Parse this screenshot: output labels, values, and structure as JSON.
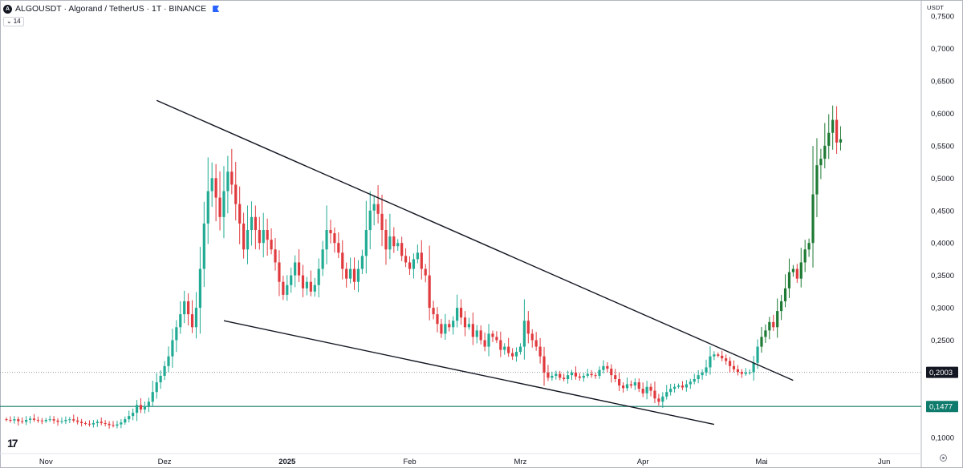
{
  "header": {
    "symbol_line": "ALGOUSDT · Algorand / TetherUS · 1T · BINANCE",
    "symbol_logo": "A",
    "indicator_chip": "14",
    "currency": "USDT"
  },
  "icons": {
    "symbol": "algorand-logo-icon",
    "flag": "flag-icon",
    "collapse": "chevron-down-icon",
    "settings": "gear-icon",
    "brand": "tradingview-logo-icon"
  },
  "brand_text": "17",
  "colors": {
    "up": "#22ab94",
    "up_dark": "#1e7a34",
    "down": "#e03a3e",
    "trendline": "#131722",
    "support": "#0f7b6c",
    "current_price": "#131722",
    "grid_dotted": "#9598a1"
  },
  "chart_data": {
    "type": "candlestick",
    "timeframe": "1T",
    "x_labels": [
      "Nov",
      "Dez",
      "2025",
      "Feb",
      "Mrz",
      "Apr",
      "Mai",
      "Jun"
    ],
    "y_ticks": [
      "0,7500",
      "0,7000",
      "0,6500",
      "0,6000",
      "0,5500",
      "0,5000",
      "0,4500",
      "0,4000",
      "0,3500",
      "0,3000",
      "0,2500",
      "0,2000",
      "0,1500",
      "0,1000"
    ],
    "ylim": [
      0.075,
      0.77
    ],
    "y_tick_values": [
      0.75,
      0.7,
      0.65,
      0.6,
      0.55,
      0.5,
      0.45,
      0.4,
      0.35,
      0.3,
      0.25,
      0.2,
      0.15,
      0.1
    ],
    "date_range": [
      "2024-10-22",
      "2025-05-28"
    ],
    "month_ticks": [
      {
        "label": "Nov",
        "date": "2024-11-01"
      },
      {
        "label": "Dez",
        "date": "2024-12-01"
      },
      {
        "label": "2025",
        "date": "2025-01-01"
      },
      {
        "label": "Feb",
        "date": "2025-02-01"
      },
      {
        "label": "Mrz",
        "date": "2025-03-01"
      },
      {
        "label": "Apr",
        "date": "2025-04-01"
      },
      {
        "label": "Mai",
        "date": "2025-05-01"
      },
      {
        "label": "Jun",
        "date": "2025-06-01"
      }
    ],
    "current_price": {
      "value": 0.2003,
      "label": "0,2003"
    },
    "support_line": {
      "value": 0.1477,
      "label": "0,1477"
    },
    "trendlines": [
      {
        "name": "upper",
        "from": {
          "date": "2024-11-29",
          "price": 0.62
        },
        "to": {
          "date": "2025-05-09",
          "price": 0.188
        }
      },
      {
        "name": "lower",
        "from": {
          "date": "2024-12-16",
          "price": 0.28
        },
        "to": {
          "date": "2025-04-19",
          "price": 0.12
        }
      }
    ],
    "candles_daily": {
      "start_date": "2024-10-22",
      "open_first": 0.128,
      "close": [
        0.127,
        0.126,
        0.128,
        0.125,
        0.124,
        0.127,
        0.129,
        0.127,
        0.126,
        0.125,
        0.127,
        0.128,
        0.126,
        0.124,
        0.125,
        0.127,
        0.128,
        0.126,
        0.124,
        0.122,
        0.121,
        0.12,
        0.122,
        0.124,
        0.122,
        0.121,
        0.119,
        0.118,
        0.12,
        0.123,
        0.128,
        0.133,
        0.138,
        0.15,
        0.143,
        0.148,
        0.155,
        0.17,
        0.185,
        0.195,
        0.21,
        0.225,
        0.25,
        0.27,
        0.29,
        0.31,
        0.29,
        0.27,
        0.3,
        0.36,
        0.43,
        0.48,
        0.5,
        0.47,
        0.44,
        0.48,
        0.51,
        0.49,
        0.46,
        0.43,
        0.39,
        0.42,
        0.44,
        0.42,
        0.4,
        0.42,
        0.405,
        0.39,
        0.37,
        0.34,
        0.32,
        0.335,
        0.35,
        0.37,
        0.35,
        0.33,
        0.34,
        0.325,
        0.335,
        0.36,
        0.39,
        0.42,
        0.415,
        0.4,
        0.385,
        0.36,
        0.345,
        0.36,
        0.34,
        0.36,
        0.38,
        0.42,
        0.45,
        0.46,
        0.445,
        0.42,
        0.39,
        0.41,
        0.395,
        0.4,
        0.38,
        0.37,
        0.36,
        0.375,
        0.385,
        0.36,
        0.35,
        0.3,
        0.29,
        0.275,
        0.26,
        0.275,
        0.27,
        0.28,
        0.3,
        0.285,
        0.27,
        0.275,
        0.255,
        0.265,
        0.25,
        0.24,
        0.26,
        0.255,
        0.25,
        0.235,
        0.24,
        0.23,
        0.225,
        0.232,
        0.24,
        0.28,
        0.26,
        0.25,
        0.24,
        0.225,
        0.2,
        0.192,
        0.195,
        0.198,
        0.192,
        0.19,
        0.196,
        0.2,
        0.194,
        0.192,
        0.195,
        0.198,
        0.196,
        0.195,
        0.204,
        0.21,
        0.206,
        0.196,
        0.19,
        0.18,
        0.176,
        0.182,
        0.18,
        0.185,
        0.175,
        0.168,
        0.178,
        0.172,
        0.16,
        0.155,
        0.163,
        0.17,
        0.175,
        0.178,
        0.18,
        0.177,
        0.182,
        0.186,
        0.19,
        0.196,
        0.2,
        0.208,
        0.225,
        0.228,
        0.226,
        0.222,
        0.218,
        0.21,
        0.205,
        0.201,
        0.198,
        0.2,
        0.2003,
        0.215,
        0.24,
        0.255,
        0.265,
        0.278,
        0.27,
        0.295,
        0.31,
        0.33,
        0.355,
        0.36,
        0.345,
        0.37,
        0.39,
        0.4,
        0.475,
        0.52,
        0.53,
        0.55,
        0.57,
        0.59,
        0.555,
        0.56
      ]
    }
  }
}
